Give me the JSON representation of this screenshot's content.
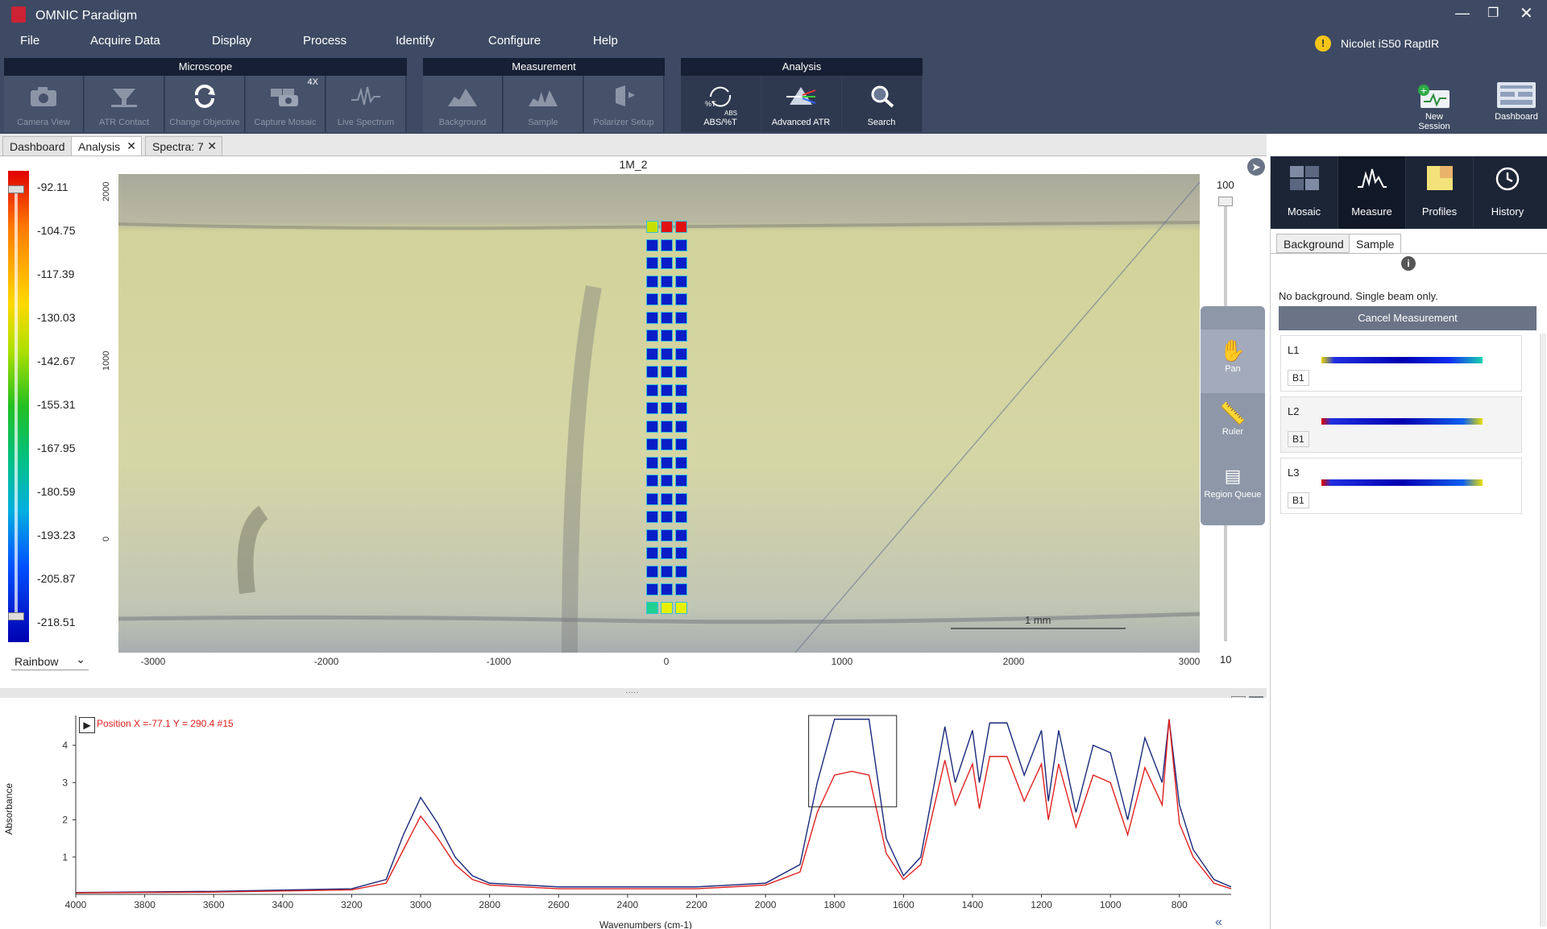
{
  "window": {
    "title": "OMNIC Paradigm",
    "instrument": "Nicolet iS50 RaptIR"
  },
  "menu": [
    "File",
    "Acquire Data",
    "Display",
    "Process",
    "Identify",
    "Configure",
    "Help"
  ],
  "ribbon": {
    "microscope": {
      "title": "Microscope",
      "buttons": [
        "Camera View",
        "ATR Contact",
        "Change Objective",
        "Capture Mosaic",
        "Live Spectrum"
      ],
      "capture_badge": "4X"
    },
    "measurement": {
      "title": "Measurement",
      "buttons": [
        "Background",
        "Sample",
        "Polarizer Setup"
      ]
    },
    "analysis": {
      "title": "Analysis",
      "buttons": [
        "ABS/%T",
        "Advanced ATR",
        "Search"
      ],
      "abs_icon_top": "%T",
      "abs_icon_bottom": "ABS"
    },
    "right": {
      "new_session": "New Session",
      "dashboard": "Dashboard"
    }
  },
  "doc_tabs": [
    "Dashboard",
    "Analysis",
    "Spectra: 7"
  ],
  "color_bar": {
    "scheme": "Rainbow",
    "labels": [
      "-92.11",
      "-104.75",
      "-117.39",
      "-130.03",
      "-142.67",
      "-155.31",
      "-167.95",
      "-180.59",
      "-193.23",
      "-205.87",
      "-218.51"
    ]
  },
  "view": {
    "title": "1M_2",
    "x_ticks": [
      "-3000",
      "-2000",
      "-1000",
      "0",
      "1000",
      "2000",
      "3000"
    ],
    "y_ticks": [
      "2000",
      "1000",
      "0"
    ],
    "scale_bar": "1 mm",
    "zoom_max": "100",
    "zoom_min": "10"
  },
  "tools": [
    "Pan",
    "Ruler",
    "Region Queue"
  ],
  "right_panel": {
    "tabs": [
      "Mosaic",
      "Measure",
      "Profiles",
      "History"
    ],
    "subtabs": [
      "Background",
      "Sample"
    ],
    "message": "No background. Single beam only.",
    "cancel_button": "Cancel Measurement",
    "lines": [
      {
        "name": "L1",
        "beam": "B1"
      },
      {
        "name": "L2",
        "beam": "B1"
      },
      {
        "name": "L3",
        "beam": "B1"
      }
    ]
  },
  "spectrum": {
    "position_readout": "Position X =-77.1 Y = 290.4 #15",
    "ylabel": "Absorbance",
    "xlabel": "Wavenumbers (cm-1)",
    "x_ticks": [
      "4000",
      "3800",
      "3600",
      "3400",
      "3200",
      "3000",
      "2800",
      "2600",
      "2400",
      "2200",
      "2000",
      "1800",
      "1600",
      "1400",
      "1200",
      "1000",
      "800"
    ],
    "y_ticks": [
      "1",
      "2",
      "3",
      "4"
    ]
  },
  "colors": {
    "chrome": "#3e4a63",
    "group_header": "#161f33",
    "accent_red": "#e02020"
  },
  "chart_data": {
    "type": "line",
    "xlabel": "Wavenumbers (cm-1)",
    "ylabel": "Absorbance",
    "xlim": [
      4000,
      650
    ],
    "ylim": [
      0,
      4.8
    ],
    "x": [
      4000,
      3600,
      3200,
      3100,
      3050,
      3000,
      2950,
      2900,
      2850,
      2800,
      2600,
      2400,
      2200,
      2000,
      1900,
      1850,
      1800,
      1750,
      1700,
      1650,
      1600,
      1550,
      1480,
      1450,
      1400,
      1380,
      1350,
      1300,
      1250,
      1200,
      1180,
      1150,
      1100,
      1050,
      1000,
      950,
      900,
      850,
      830,
      800,
      760,
      700,
      650
    ],
    "series": [
      {
        "values": [
          0.05,
          0.08,
          0.15,
          0.4,
          1.6,
          2.6,
          1.9,
          1.0,
          0.5,
          0.3,
          0.2,
          0.2,
          0.2,
          0.3,
          0.8,
          3.0,
          4.7,
          4.7,
          4.7,
          1.5,
          0.5,
          1.0,
          4.5,
          3.0,
          4.4,
          3.0,
          4.6,
          4.6,
          3.2,
          4.4,
          2.5,
          4.4,
          2.2,
          4.0,
          3.8,
          2.0,
          4.2,
          3.0,
          4.7,
          2.4,
          1.2,
          0.4,
          0.2
        ]
      },
      {
        "values": [
          0.04,
          0.06,
          0.12,
          0.3,
          1.2,
          2.1,
          1.5,
          0.8,
          0.4,
          0.25,
          0.15,
          0.15,
          0.15,
          0.25,
          0.6,
          2.2,
          3.2,
          3.3,
          3.2,
          1.1,
          0.4,
          0.8,
          3.6,
          2.4,
          3.5,
          2.3,
          3.7,
          3.7,
          2.5,
          3.5,
          2.0,
          3.5,
          1.8,
          3.2,
          3.0,
          1.6,
          3.4,
          2.4,
          4.7,
          1.9,
          1.0,
          0.3,
          0.15
        ]
      }
    ]
  }
}
